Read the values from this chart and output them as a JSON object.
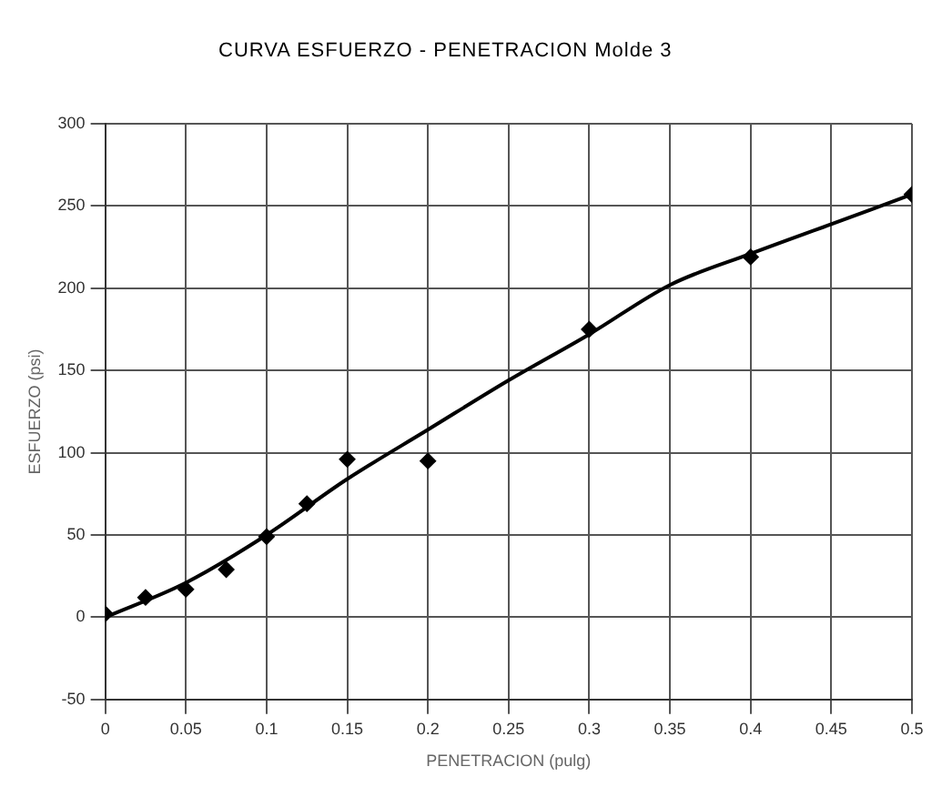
{
  "chart_data": {
    "type": "scatter",
    "title": "CURVA ESFUERZO - PENETRACION  Molde 3",
    "xlabel": "PENETRACION (pulg)",
    "ylabel": "ESFUERZO (psi)",
    "xlim": [
      0,
      0.5
    ],
    "xticks": [
      0,
      0.05,
      0.1,
      0.15,
      0.2,
      0.25,
      0.3,
      0.35,
      0.4,
      0.45,
      0.5
    ],
    "ylim": [
      -50,
      300
    ],
    "yticks": [
      -50,
      0,
      50,
      100,
      150,
      200,
      250,
      300
    ],
    "grid": true,
    "legend": false,
    "series": [
      {
        "color": "#000000",
        "marker": "diamond",
        "x": [
          0,
          0.025,
          0.05,
          0.075,
          0.1,
          0.125,
          0.15,
          0.2,
          0.3,
          0.4,
          0.5
        ],
        "values": [
          2,
          12,
          17,
          29,
          49,
          69,
          96,
          95,
          175,
          219,
          257
        ]
      },
      {
        "type": "line",
        "color": "#000000",
        "marker": "none",
        "x": [
          0,
          0.05,
          0.1,
          0.15,
          0.2,
          0.25,
          0.3,
          0.35,
          0.4,
          0.45,
          0.5
        ],
        "values": [
          0,
          21,
          50,
          84,
          114,
          144,
          172,
          202,
          221,
          239,
          257
        ]
      }
    ]
  }
}
